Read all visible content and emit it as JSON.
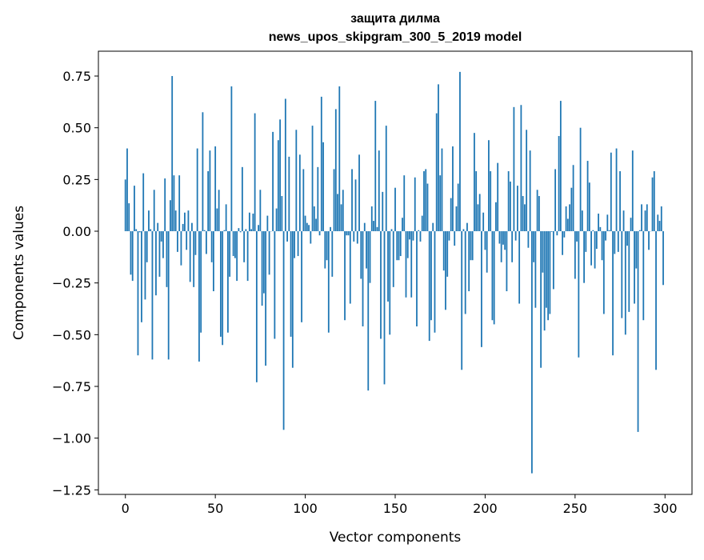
{
  "chart_data": {
    "type": "bar",
    "title": [
      "защита дилма",
      "news_upos_skipgram_300_5_2019 model"
    ],
    "xlabel": "Vector components",
    "ylabel": "Components values",
    "xlim": [
      -15,
      315
    ],
    "ylim": [
      -1.272,
      0.87
    ],
    "xticks": [
      0,
      50,
      100,
      150,
      200,
      250,
      300
    ],
    "xtick_labels": [
      "0",
      "50",
      "100",
      "150",
      "200",
      "250",
      "300"
    ],
    "yticks": [
      0.75,
      0.5,
      0.25,
      0.0,
      -0.25,
      -0.5,
      -0.75,
      -1.0,
      -1.25
    ],
    "ytick_labels": [
      "0.75",
      "0.50",
      "0.25",
      "0.00",
      "−0.25",
      "−0.50",
      "−0.75",
      "−1.00",
      "−1.25"
    ],
    "grid": false,
    "bar_color": "#1f77b4",
    "values": [
      0.25,
      0.4,
      0.135,
      -0.21,
      -0.24,
      0.22,
      0.01,
      -0.6,
      -0.005,
      -0.44,
      0.28,
      -0.33,
      -0.15,
      0.1,
      0.01,
      -0.62,
      0.2,
      -0.31,
      0.04,
      -0.22,
      -0.05,
      -0.13,
      0.255,
      -0.27,
      -0.62,
      0.15,
      0.75,
      0.27,
      0.1,
      -0.1,
      0.27,
      -0.165,
      0.035,
      0.09,
      -0.09,
      0.1,
      -0.245,
      0.04,
      -0.27,
      -0.115,
      0.4,
      -0.63,
      -0.49,
      0.575,
      0.005,
      -0.11,
      0.29,
      0.39,
      -0.15,
      -0.29,
      0.41,
      0.11,
      0.2,
      -0.51,
      -0.55,
      0.005,
      0.13,
      -0.49,
      -0.22,
      0.7,
      -0.12,
      -0.13,
      -0.24,
      0.015,
      -0.005,
      0.31,
      -0.15,
      0.01,
      -0.24,
      0.09,
      0.01,
      0.085,
      0.57,
      -0.73,
      0.03,
      0.2,
      -0.36,
      -0.3,
      -0.65,
      0.075,
      -0.21,
      0.0,
      0.48,
      -0.52,
      0.11,
      0.44,
      0.54,
      0.17,
      -0.96,
      0.64,
      -0.05,
      0.36,
      -0.51,
      -0.66,
      -0.13,
      0.49,
      -0.12,
      0.37,
      -0.44,
      0.3,
      0.075,
      0.04,
      0.03,
      -0.06,
      0.51,
      0.12,
      0.06,
      0.31,
      -0.02,
      0.65,
      0.43,
      -0.18,
      -0.14,
      -0.49,
      0.02,
      -0.22,
      0.3,
      0.59,
      0.18,
      0.7,
      0.13,
      0.2,
      -0.43,
      -0.02,
      -0.02,
      -0.35,
      0.3,
      -0.05,
      0.25,
      -0.06,
      0.37,
      -0.23,
      -0.46,
      0.04,
      -0.18,
      -0.77,
      -0.25,
      0.12,
      0.05,
      0.63,
      0.02,
      0.39,
      -0.52,
      0.19,
      -0.74,
      0.51,
      -0.34,
      -0.5,
      0.01,
      -0.27,
      0.21,
      -0.14,
      -0.14,
      -0.12,
      0.065,
      0.27,
      -0.32,
      -0.13,
      -0.04,
      -0.32,
      -0.045,
      0.26,
      -0.46,
      0.005,
      -0.05,
      0.075,
      0.29,
      0.3,
      0.23,
      -0.53,
      -0.43,
      0.04,
      -0.49,
      0.57,
      0.71,
      0.27,
      0.4,
      -0.19,
      -0.38,
      -0.22,
      -0.045,
      0.16,
      0.41,
      -0.07,
      0.12,
      0.23,
      0.77,
      -0.67,
      0.01,
      -0.4,
      0.04,
      -0.29,
      -0.14,
      -0.14,
      0.475,
      0.29,
      0.13,
      0.18,
      -0.56,
      0.09,
      -0.09,
      -0.2,
      0.44,
      0.29,
      -0.43,
      -0.45,
      0.14,
      0.33,
      -0.06,
      -0.15,
      -0.065,
      -0.09,
      -0.29,
      0.29,
      0.24,
      -0.15,
      0.6,
      -0.045,
      0.22,
      -0.35,
      0.61,
      0.17,
      0.13,
      0.49,
      -0.08,
      0.39,
      -1.17,
      -0.15,
      -0.37,
      0.2,
      0.17,
      -0.66,
      -0.2,
      -0.48,
      -0.37,
      -0.43,
      -0.4,
      -0.003,
      -0.28,
      0.3,
      -0.02,
      0.46,
      0.63,
      -0.115,
      -0.03,
      0.12,
      0.06,
      0.13,
      0.21,
      0.32,
      -0.23,
      -0.05,
      -0.61,
      0.5,
      0.1,
      -0.25,
      -0.1,
      0.34,
      0.235,
      -0.165,
      0.005,
      -0.18,
      -0.085,
      0.085,
      0.02,
      -0.14,
      -0.4,
      -0.045,
      0.08,
      0.005,
      0.38,
      -0.6,
      -0.11,
      0.4,
      -0.1,
      0.29,
      -0.42,
      0.1,
      -0.5,
      -0.07,
      -0.39,
      0.065,
      0.39,
      -0.35,
      -0.18,
      -0.97,
      0.005,
      0.13,
      -0.43,
      0.1,
      0.13,
      -0.09,
      0.0,
      0.26,
      0.29,
      -0.67,
      0.08,
      0.05,
      0.12,
      -0.26
    ]
  }
}
